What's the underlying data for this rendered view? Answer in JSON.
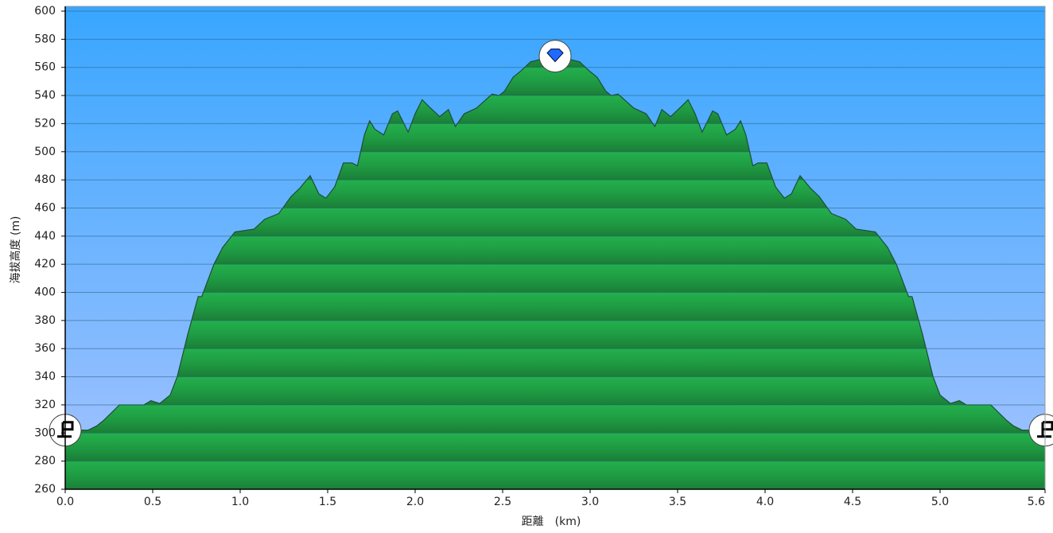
{
  "chart_data": {
    "type": "area",
    "x_label": "距離　(km)",
    "y_label": "海拔高度 (m)",
    "x": [
      0,
      0.13,
      0.18,
      0.22,
      0.31,
      0.45,
      0.49,
      0.54,
      0.6,
      0.64,
      0.7,
      0.76,
      0.78,
      0.85,
      0.9,
      0.97,
      1.08,
      1.14,
      1.22,
      1.29,
      1.34,
      1.4,
      1.45,
      1.49,
      1.54,
      1.59,
      1.64,
      1.67,
      1.71,
      1.74,
      1.77,
      1.82,
      1.87,
      1.9,
      1.96,
      2.0,
      2.04,
      2.08,
      2.14,
      2.19,
      2.23,
      2.28,
      2.35,
      2.44,
      2.48,
      2.51,
      2.56,
      2.6,
      2.66,
      2.76,
      2.8,
      2.84,
      2.94,
      3.0,
      3.04,
      3.09,
      3.12,
      3.16,
      3.25,
      3.32,
      3.37,
      3.41,
      3.46,
      3.52,
      3.56,
      3.6,
      3.64,
      3.7,
      3.73,
      3.78,
      3.83,
      3.86,
      3.89,
      3.93,
      3.96,
      4.01,
      4.06,
      4.11,
      4.15,
      4.2,
      4.26,
      4.31,
      4.38,
      4.46,
      4.52,
      4.63,
      4.7,
      4.75,
      4.82,
      4.84,
      4.9,
      4.96,
      5.0,
      5.06,
      5.11,
      5.15,
      5.29,
      5.38,
      5.42,
      5.47,
      5.6
    ],
    "series": [
      {
        "name": "elevation",
        "color": "#22a84a",
        "values": [
          302,
          302,
          305,
          309,
          320,
          320,
          323,
          321,
          327,
          340,
          370,
          397,
          397,
          420,
          432,
          443,
          445,
          452,
          456,
          468,
          474,
          483,
          470,
          467,
          475,
          492,
          492,
          490,
          512,
          522,
          516,
          512,
          527,
          529,
          514,
          527,
          537,
          532,
          525,
          530,
          518,
          527,
          531,
          541,
          540,
          543,
          553,
          557,
          564,
          567,
          568,
          567,
          564,
          557,
          553,
          543,
          540,
          541,
          531,
          527,
          518,
          530,
          525,
          532,
          537,
          527,
          514,
          529,
          527,
          512,
          516,
          522,
          512,
          490,
          492,
          492,
          475,
          467,
          470,
          483,
          474,
          468,
          456,
          452,
          445,
          443,
          432,
          420,
          397,
          397,
          370,
          340,
          327,
          321,
          323,
          320,
          320,
          309,
          305,
          302,
          302
        ]
      }
    ],
    "xlim": [
      0,
      5.6
    ],
    "ylim": [
      260,
      600
    ],
    "xticks": [
      {
        "value": 0,
        "label": "0.0"
      },
      0.5,
      {
        "value": 1,
        "label": "1.0"
      },
      1.5,
      {
        "value": 2,
        "label": "2.0"
      },
      2.5,
      {
        "value": 3,
        "label": "3.0"
      },
      3.5,
      {
        "value": 4,
        "label": "4.0"
      },
      4.5,
      {
        "value": 5,
        "label": "5.0"
      },
      5.6
    ],
    "yticks": [
      260,
      280,
      300,
      320,
      340,
      360,
      380,
      400,
      420,
      440,
      460,
      480,
      500,
      520,
      540,
      560,
      580,
      600
    ],
    "grid": true
  }
}
